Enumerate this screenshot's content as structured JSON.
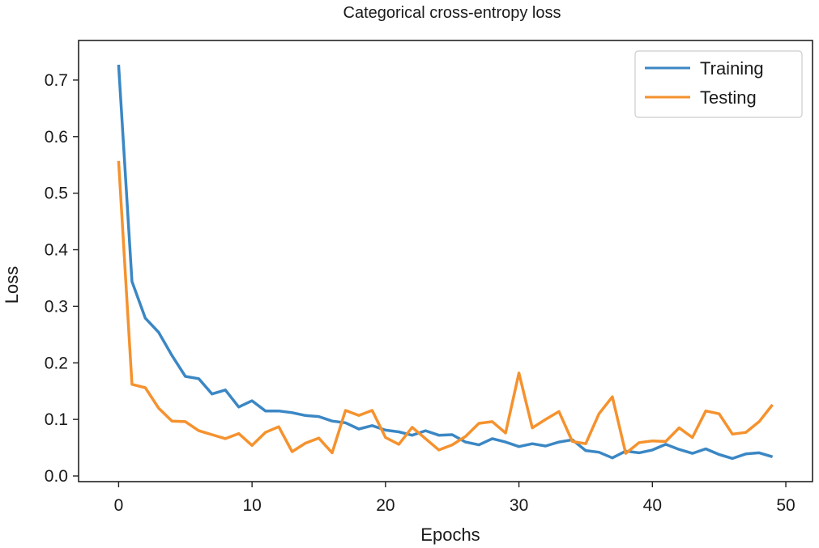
{
  "chart_data": {
    "type": "line",
    "title": "Categorical cross-entropy loss",
    "xlabel": "Epochs",
    "ylabel": "Loss",
    "xlim": [
      -3,
      52
    ],
    "ylim": [
      -0.01,
      0.77
    ],
    "xticks": [
      0,
      10,
      20,
      30,
      40,
      50
    ],
    "xtick_labels": [
      "0",
      "10",
      "20",
      "30",
      "40",
      "50"
    ],
    "yticks": [
      0.0,
      0.1,
      0.2,
      0.3,
      0.4,
      0.5,
      0.6,
      0.7
    ],
    "ytick_labels": [
      "0.0",
      "0.1",
      "0.2",
      "0.3",
      "0.4",
      "0.5",
      "0.6",
      "0.7"
    ],
    "grid": false,
    "legend_position": "top-right",
    "x": [
      0,
      1,
      2,
      3,
      4,
      5,
      6,
      7,
      8,
      9,
      10,
      11,
      12,
      13,
      14,
      15,
      16,
      17,
      18,
      19,
      20,
      21,
      22,
      23,
      24,
      25,
      26,
      27,
      28,
      29,
      30,
      31,
      32,
      33,
      34,
      35,
      36,
      37,
      38,
      39,
      40,
      41,
      42,
      43,
      44,
      45,
      46,
      47,
      48,
      49
    ],
    "series": [
      {
        "name": "Training",
        "color": "#3b87c4",
        "values": [
          0.727,
          0.344,
          0.279,
          0.254,
          0.213,
          0.176,
          0.172,
          0.145,
          0.152,
          0.122,
          0.133,
          0.115,
          0.115,
          0.112,
          0.107,
          0.105,
          0.097,
          0.094,
          0.083,
          0.089,
          0.081,
          0.078,
          0.072,
          0.08,
          0.072,
          0.073,
          0.06,
          0.055,
          0.066,
          0.06,
          0.052,
          0.057,
          0.053,
          0.06,
          0.064,
          0.045,
          0.042,
          0.032,
          0.044,
          0.041,
          0.046,
          0.056,
          0.047,
          0.04,
          0.048,
          0.038,
          0.031,
          0.039,
          0.041,
          0.034
        ]
      },
      {
        "name": "Testing",
        "color": "#f5922e",
        "values": [
          0.557,
          0.162,
          0.156,
          0.12,
          0.097,
          0.096,
          0.08,
          0.073,
          0.066,
          0.075,
          0.054,
          0.077,
          0.087,
          0.043,
          0.058,
          0.067,
          0.041,
          0.116,
          0.107,
          0.116,
          0.068,
          0.056,
          0.086,
          0.066,
          0.046,
          0.055,
          0.07,
          0.093,
          0.096,
          0.076,
          0.182,
          0.085,
          0.1,
          0.114,
          0.061,
          0.057,
          0.11,
          0.14,
          0.04,
          0.059,
          0.062,
          0.061,
          0.085,
          0.068,
          0.115,
          0.11,
          0.074,
          0.077,
          0.096,
          0.126
        ]
      }
    ]
  }
}
